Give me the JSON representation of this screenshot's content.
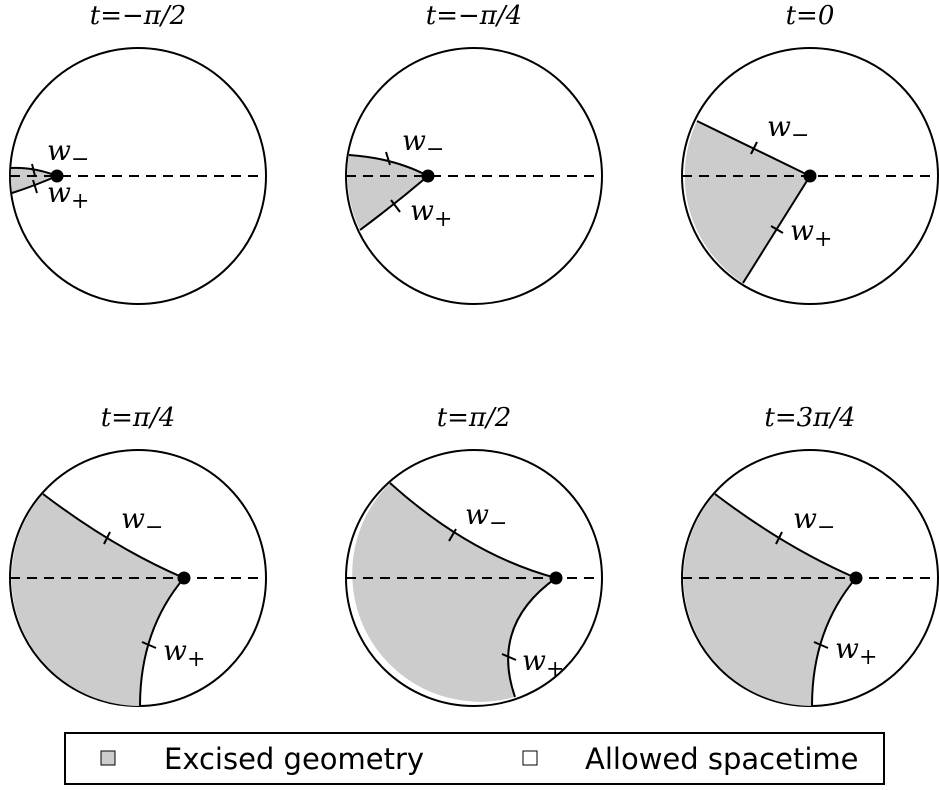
{
  "panels": [
    {
      "title": "t=−π/2",
      "w_minus": "w",
      "w_minus_sub": "−",
      "w_plus": "w",
      "w_plus_sub": "+"
    },
    {
      "title": "t=−π/4",
      "w_minus": "w",
      "w_minus_sub": "−",
      "w_plus": "w",
      "w_plus_sub": "+"
    },
    {
      "title": "t=0",
      "w_minus": "w",
      "w_minus_sub": "−",
      "w_plus": "w",
      "w_plus_sub": "+"
    },
    {
      "title": "t=π/4",
      "w_minus": "w",
      "w_minus_sub": "−",
      "w_plus": "w",
      "w_plus_sub": "+"
    },
    {
      "title": "t=π/2",
      "w_minus": "w",
      "w_minus_sub": "−",
      "w_plus": "w",
      "w_plus_sub": "+"
    },
    {
      "title": "t=3π/4",
      "w_minus": "w",
      "w_minus_sub": "−",
      "w_plus": "w",
      "w_plus_sub": "+"
    }
  ],
  "legend": {
    "excised_label": "Excised geometry",
    "allowed_label": "Allowed spacetime"
  },
  "colors": {
    "excised": "#cccccc",
    "allowed": "#ffffff",
    "stroke": "#000000"
  }
}
